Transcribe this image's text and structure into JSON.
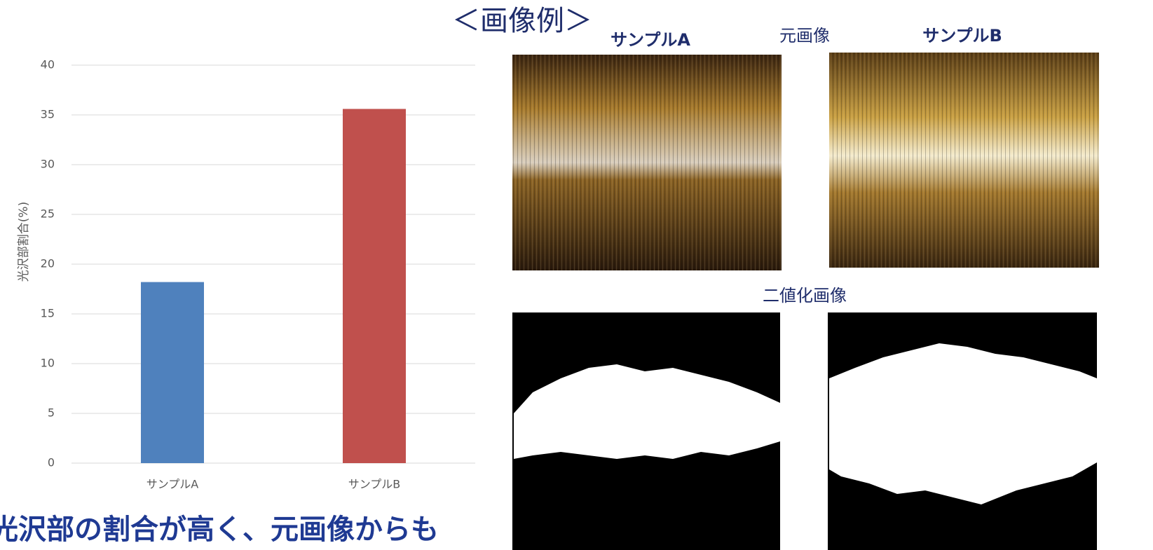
{
  "chart_data": {
    "type": "bar",
    "y_label": "光沢部割合(%)",
    "categories": [
      "サンプルA",
      "サンプルB"
    ],
    "values": [
      18.2,
      35.6
    ],
    "colors": [
      "#4f81bd",
      "#c0504d"
    ],
    "ylim": [
      0,
      40
    ],
    "yticks": [
      0,
      5,
      10,
      15,
      20,
      25,
      30,
      35,
      40
    ],
    "grid": true
  },
  "panel": {
    "title": "＜画像例＞",
    "sample_a": "サンプルA",
    "original": "元画像",
    "sample_b": "サンプルB",
    "binary": "二値化画像"
  },
  "caption": "光沢部の割合が高く、元画像からも"
}
